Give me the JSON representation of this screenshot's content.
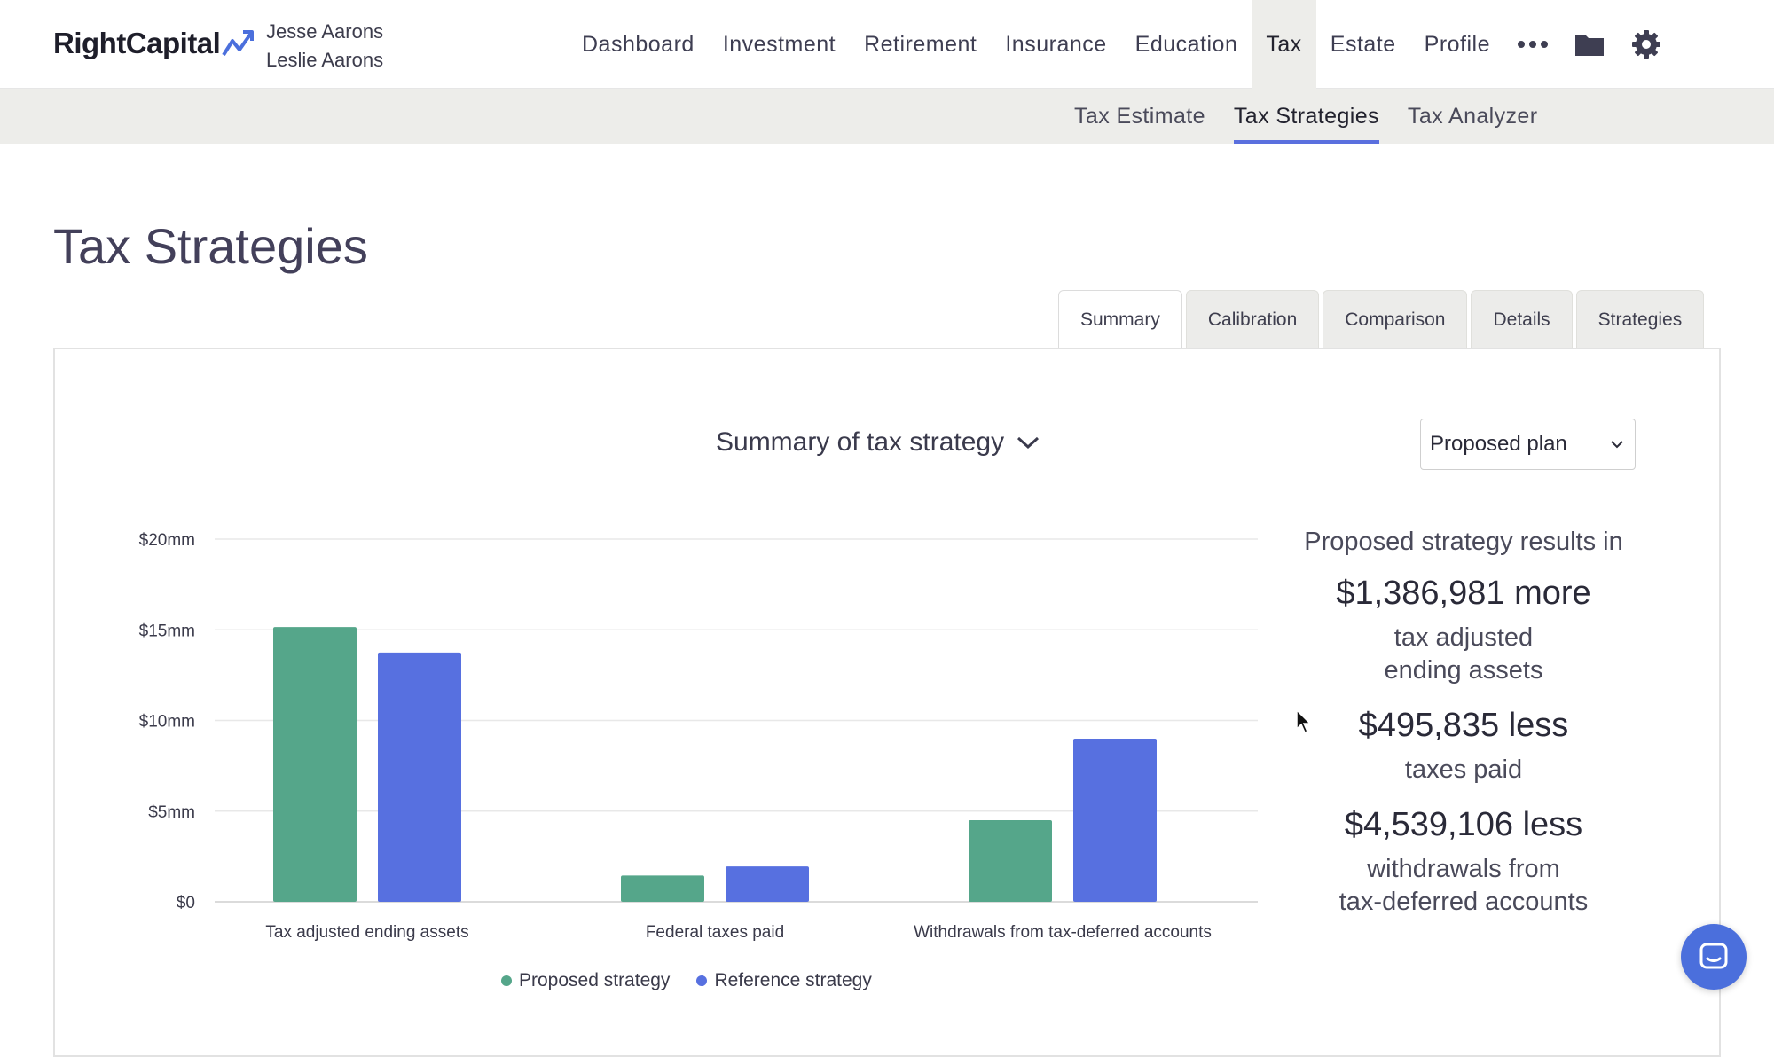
{
  "brand": {
    "name": "RightCapital",
    "accent": "#5a6fde"
  },
  "clients": [
    "Jesse Aarons",
    "Leslie Aarons"
  ],
  "nav": {
    "items": [
      "Dashboard",
      "Investment",
      "Retirement",
      "Insurance",
      "Education",
      "Tax",
      "Estate",
      "Profile"
    ],
    "active": "Tax",
    "icons": [
      "more-icon",
      "folder-icon",
      "gear-icon"
    ]
  },
  "subnav": {
    "items": [
      "Tax Estimate",
      "Tax Strategies",
      "Tax Analyzer"
    ],
    "active": "Tax Strategies"
  },
  "page": {
    "title": "Tax Strategies"
  },
  "tabs": {
    "items": [
      "Summary",
      "Calibration",
      "Comparison",
      "Details",
      "Strategies"
    ],
    "active": "Summary"
  },
  "card": {
    "title": "Summary of tax strategy",
    "plan_select": "Proposed plan"
  },
  "chart_data": {
    "type": "bar",
    "categories": [
      "Tax adjusted ending assets",
      "Federal taxes paid",
      "Withdrawals from tax-deferred accounts"
    ],
    "series": [
      {
        "name": "Proposed strategy",
        "color": "#55a68a",
        "values": [
          15.15,
          1.45,
          4.5
        ]
      },
      {
        "name": "Reference strategy",
        "color": "#5770e0",
        "values": [
          13.75,
          1.95,
          9.0
        ]
      }
    ],
    "yticks": [
      0,
      5,
      10,
      15,
      20
    ],
    "ytick_labels": [
      "$0",
      "$5mm",
      "$10mm",
      "$15mm",
      "$20mm"
    ],
    "ylim": [
      0,
      20
    ],
    "grid": true,
    "legend": "bottom"
  },
  "results": {
    "heading": "Proposed strategy results in",
    "items": [
      {
        "value": "$1,386,981 more",
        "desc_line1": "tax adjusted",
        "desc_line2": "ending assets"
      },
      {
        "value": "$495,835 less",
        "desc_line1": "taxes paid",
        "desc_line2": ""
      },
      {
        "value": "$4,539,106 less",
        "desc_line1": "withdrawals from",
        "desc_line2": "tax-deferred accounts"
      }
    ]
  }
}
